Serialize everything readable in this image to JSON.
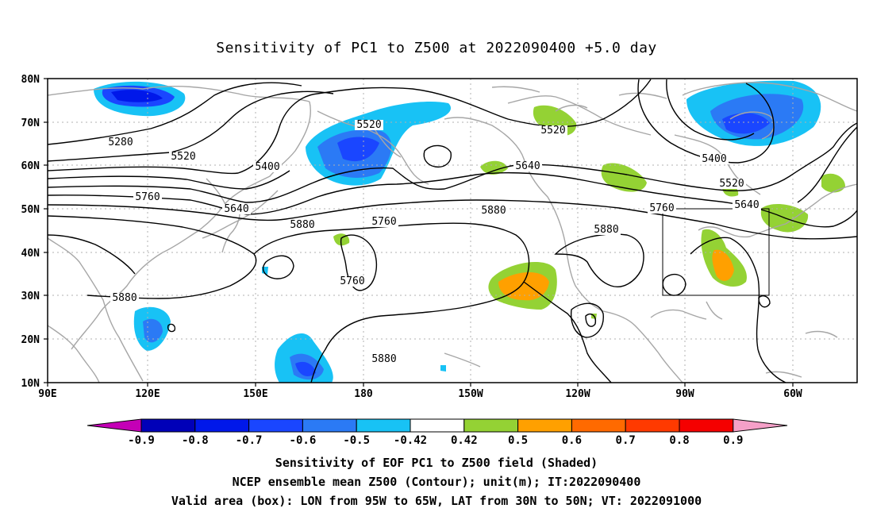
{
  "title": "Sensitivity of PC1 to Z500 at 2022090400 +5.0 day",
  "map": {
    "lat_ticks": [
      "80N",
      "70N",
      "60N",
      "50N",
      "40N",
      "30N",
      "20N",
      "10N"
    ],
    "lon_ticks": [
      "90E",
      "120E",
      "150E",
      "180",
      "150W",
      "120W",
      "90W",
      "60W"
    ],
    "contour_labels": [
      "5280",
      "5520",
      "5520",
      "5520",
      "5400",
      "5400",
      "5520",
      "5640",
      "5640",
      "5640",
      "5760",
      "5760",
      "5760",
      "5760",
      "5880",
      "5880",
      "5880",
      "5880",
      "5880"
    ]
  },
  "colorbar": {
    "labels": [
      "-0.9",
      "-0.8",
      "-0.7",
      "-0.6",
      "-0.5",
      "-0.42",
      "0.42",
      "0.5",
      "0.6",
      "0.7",
      "0.8",
      "0.9"
    ],
    "colors": [
      "#c400b6",
      "#0000b8",
      "#0018ea",
      "#1a46ff",
      "#2b7af5",
      "#18c2f5",
      "#ffffff",
      "#94d234",
      "#ffa000",
      "#ff6a00",
      "#ff3a00",
      "#f50000",
      "#f5a0c8"
    ]
  },
  "captions": [
    "Sensitivity of EOF PC1 to Z500 field (Shaded)",
    "NCEP ensemble mean Z500 (Contour); unit(m); IT:2022090400",
    "Valid area (box): LON from 95W to 65W, LAT from 30N to 50N; VT: 2022091000"
  ]
}
